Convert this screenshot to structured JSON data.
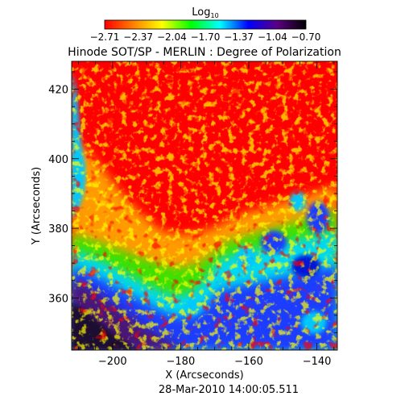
{
  "chart_data": {
    "type": "heatmap",
    "title": "Hinode SOT/SP - MERLIN : Degree of Polarization",
    "subtitle": "28-Mar-2010 14:00:05.511",
    "xlabel": "X (Arcseconds)",
    "ylabel": "Y (Arcseconds)",
    "xlim": [
      -212,
      -134
    ],
    "ylim": [
      345,
      428
    ],
    "x_ticks": [
      -200,
      -180,
      -160,
      -140
    ],
    "y_ticks": [
      360,
      380,
      400,
      420
    ],
    "colorbar": {
      "label_base": "Log",
      "label_sub": "10",
      "range": [
        -2.71,
        -0.7
      ],
      "ticks": [
        "-2.71",
        "-2.37",
        "-2.04",
        "-1.70",
        "-1.37",
        "-1.04",
        "-0.70"
      ],
      "placement": "top"
    },
    "colormap": [
      "#ff0000",
      "#ff8000",
      "#ffff00",
      "#00ff00",
      "#00ffff",
      "#0000ff",
      "#5a0082",
      "#000000"
    ],
    "regions": {
      "upper_half": -2.71,
      "lower_right_network": -1.3,
      "lower_left_limb": -0.85
    }
  }
}
